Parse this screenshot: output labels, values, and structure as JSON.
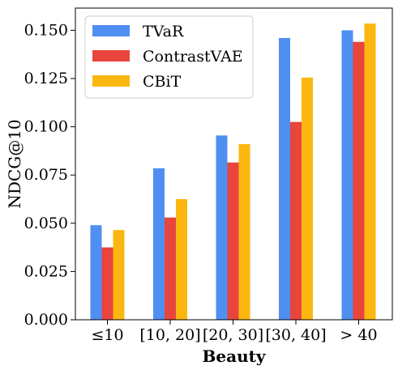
{
  "chart_data": {
    "type": "bar",
    "categories": [
      "≤10",
      "[10, 20]",
      "[20, 30]",
      "[30, 40]",
      "> 40"
    ],
    "series": [
      {
        "name": "TVaR",
        "color": "#4f8ff2",
        "values": [
          0.049,
          0.0785,
          0.0955,
          0.146,
          0.15
        ]
      },
      {
        "name": "ContrastVAE",
        "color": "#e8453c",
        "values": [
          0.0375,
          0.053,
          0.0815,
          0.1025,
          0.144
        ]
      },
      {
        "name": "CBiT",
        "color": "#fbb70f",
        "values": [
          0.0465,
          0.0625,
          0.091,
          0.1255,
          0.1535
        ]
      }
    ],
    "xlabel": "Beauty",
    "ylabel": "NDCG@10",
    "ylim": [
      0,
      0.1615
    ],
    "yticks": [
      0.0,
      0.025,
      0.05,
      0.075,
      0.1,
      0.125,
      0.15
    ],
    "ytick_labels": [
      "0.000",
      "0.025",
      "0.050",
      "0.075",
      "0.100",
      "0.125",
      "0.150"
    ],
    "legend_position": "top-left",
    "grid": false
  }
}
